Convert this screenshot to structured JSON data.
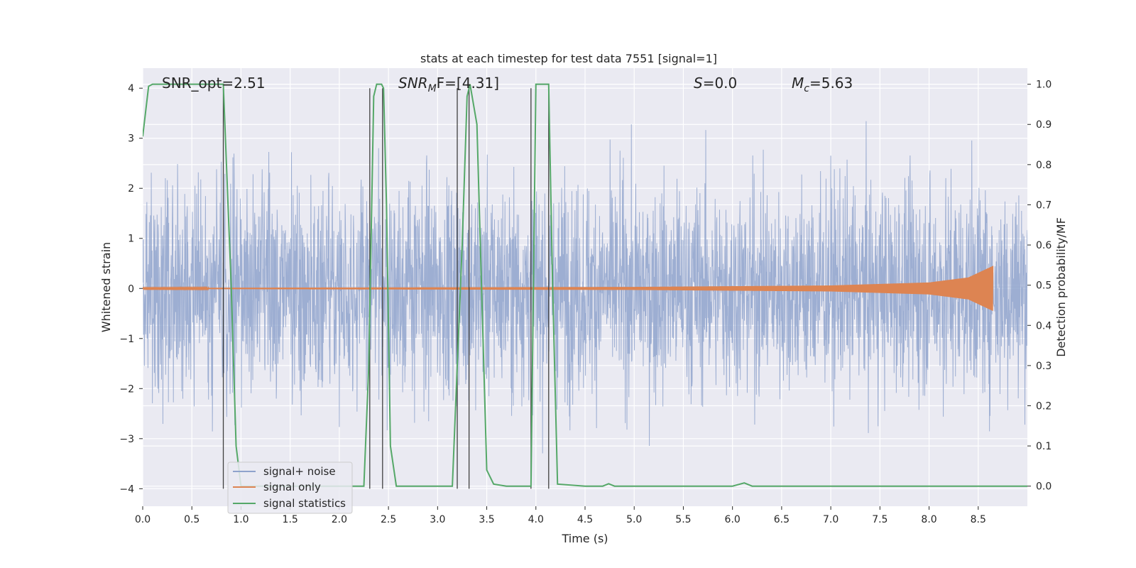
{
  "chart_data": {
    "type": "line",
    "title": "stats at each timestep for test data 7551 [signal=1]",
    "xlabel": "Time (s)",
    "ylabel_left": "Whitened strain",
    "ylabel_right": "Detection probability/MF",
    "xlim": [
      0.0,
      9.0
    ],
    "ylim_left": [
      -4.35,
      4.4
    ],
    "ylim_right": [
      -0.05,
      1.04
    ],
    "x_ticks": [
      "0.0",
      "0.5",
      "1.0",
      "1.5",
      "2.0",
      "2.5",
      "3.0",
      "3.5",
      "4.0",
      "4.5",
      "5.0",
      "5.5",
      "6.0",
      "6.5",
      "7.0",
      "7.5",
      "8.0",
      "8.5"
    ],
    "y_ticks_left": [
      "−4",
      "−3",
      "−2",
      "−1",
      "0",
      "1",
      "2",
      "3",
      "4"
    ],
    "y_ticks_right": [
      "0.0",
      "0.1",
      "0.2",
      "0.3",
      "0.4",
      "0.5",
      "0.6",
      "0.7",
      "0.8",
      "0.9",
      "1.0"
    ],
    "grid": true,
    "legend_position": "lower-left",
    "annotations": {
      "snr_opt": "SNR_opt=2.51",
      "snr_mf_main": "SNR",
      "snr_mf_sub": "M",
      "snr_mf_rest": "F=[4.31]",
      "s_main": "S",
      "s_rest": "=0.0",
      "mc_main": "M",
      "mc_sub": "c",
      "mc_rest": "=5.63"
    },
    "series": [
      {
        "name": "signal+ noise",
        "color": "#8fa3cc",
        "description_values": "noisy whitened strain, peak amplitude about 4, dense oscillation",
        "amplitude_envelope": {
          "x": [
            0.0,
            9.0
          ],
          "y": [
            2.2,
            2.2
          ]
        }
      },
      {
        "name": "signal only",
        "color": "#dd8452",
        "chirp_end_time": 8.65,
        "chirp_amplitude": {
          "x": [
            0.0,
            5.0,
            7.0,
            8.0,
            8.4,
            8.65
          ],
          "y": [
            0.01,
            0.03,
            0.06,
            0.12,
            0.22,
            0.45
          ]
        }
      },
      {
        "name": "signal statistics",
        "color": "#55a868",
        "x": [
          0.0,
          0.06,
          0.1,
          0.2,
          0.3,
          0.5,
          0.7,
          0.8,
          0.82,
          0.9,
          0.95,
          1.0,
          1.2,
          1.5,
          2.0,
          2.2,
          2.25,
          2.3,
          2.35,
          2.38,
          2.43,
          2.45,
          2.48,
          2.52,
          2.58,
          2.7,
          3.0,
          3.15,
          3.25,
          3.3,
          3.33,
          3.4,
          3.5,
          3.57,
          3.7,
          3.9,
          3.95,
          4.0,
          4.1,
          4.13,
          4.17,
          4.22,
          4.5,
          4.68,
          4.74,
          4.8,
          5.5,
          6.0,
          6.12,
          6.2,
          7.0,
          8.0,
          9.0
        ],
        "y": [
          0.87,
          0.995,
          1.0,
          1.0,
          1.0,
          1.0,
          1.0,
          1.0,
          1.0,
          0.5,
          0.1,
          0.0,
          0.0,
          0.0,
          0.0,
          0.0,
          0.0,
          0.3,
          0.97,
          1.0,
          1.0,
          0.99,
          0.7,
          0.1,
          0.0,
          0.0,
          0.0,
          0.0,
          0.6,
          0.97,
          1.0,
          0.9,
          0.04,
          0.005,
          0.0,
          0.0,
          0.0,
          1.0,
          1.0,
          1.0,
          0.5,
          0.005,
          0.0,
          0.0,
          0.006,
          0.0,
          0.0,
          0.0,
          0.008,
          0.0,
          0.0,
          0.0,
          0.0
        ]
      }
    ],
    "vertical_lines_x": [
      0.82,
      2.31,
      2.44,
      3.2,
      3.32,
      3.95,
      4.13
    ]
  }
}
